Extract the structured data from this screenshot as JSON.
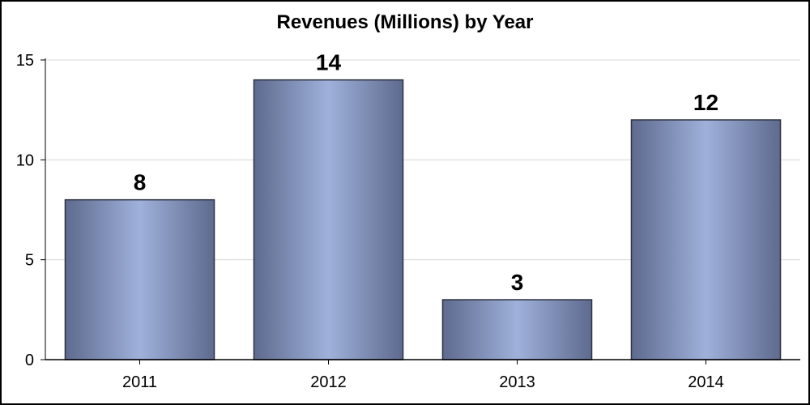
{
  "chart_data": {
    "type": "bar",
    "title": "Revenues (Millions) by Year",
    "xlabel": "",
    "ylabel": "",
    "categories": [
      "2011",
      "2012",
      "2013",
      "2014"
    ],
    "values": [
      8,
      14,
      3,
      12
    ],
    "data_labels": [
      "8",
      "14",
      "3",
      "12"
    ],
    "ylim": [
      0,
      15
    ],
    "yticks": [
      0,
      5,
      10,
      15
    ],
    "grid": true,
    "legend": "none"
  },
  "colors": {
    "bar_light": "#9fb1db",
    "bar_dark": "#5e6a8e",
    "bar_stroke": "#2e3342",
    "grid": "#d9d9d9",
    "axis": "#000000",
    "text": "#000000",
    "border": "#000000",
    "background": "#ffffff"
  }
}
